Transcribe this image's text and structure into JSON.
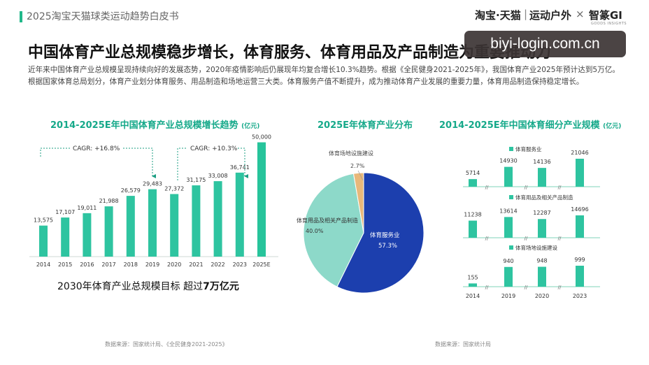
{
  "header": {
    "title": "2025淘宝天猫球类运动趋势白皮书",
    "logo_tmall": "淘宝·天猫",
    "logo_sep": "|",
    "logo_category": "运动户外",
    "logo_x": "×",
    "logo_zhimeng": "智篆GI",
    "logo_zhimeng_sub": "GOODS INSIGHTS",
    "accent_color": "#21b88a"
  },
  "main_title": "中国体育产业总规模稳步增长，体育服务、体育用品及产品制造为重要推动力",
  "watermark": "biyi-login.com.cn",
  "description": "近年来中国体育产业总规模呈现持续向好的发展态势，2020年疫情影响后仍展现年均复合增长10.3%趋势。根据《全民健身2021-2025年》，我国体育产业2025年预计达到5万亿。根据国家体育总局划分，体育产业划分体育服务、用品制造和场地运营三大类。体育服务产值不断提升，成为推动体育产业发展的重要力量，体育用品制造保持稳定增长。",
  "target": {
    "prefix": "2030年体育产业总规模目标 超过",
    "bold": "7万亿元"
  },
  "sources": {
    "left": "数据来源：国家统计局、《全民健身2021-2025》",
    "right": "数据来源：国家统计局"
  },
  "chart_data": [
    {
      "type": "bar",
      "title": "2014-2025E年中国体育产业总规模增长趋势",
      "unit": "(亿元)",
      "categories": [
        "2014",
        "2015",
        "2016",
        "2017",
        "2018",
        "2019",
        "2020",
        "2021",
        "2022",
        "2023",
        "2025E"
      ],
      "values": [
        13575,
        17107,
        19011,
        21988,
        26579,
        29483,
        27372,
        31175,
        33008,
        36741,
        50000
      ],
      "value_labels": [
        "13,575",
        "17,107",
        "19,011",
        "21,988",
        "26,579",
        "29,483",
        "27,372",
        "31,175",
        "33,008",
        "36,741",
        "50,000"
      ],
      "annotations": [
        "CAGR: +16.8%",
        "CAGR: +10.3%"
      ],
      "ylim": [
        0,
        52000
      ],
      "color": "#2ec4a0",
      "accent": "#1a9e82"
    },
    {
      "type": "pie",
      "title": "2025E年体育产业分布",
      "slices": [
        {
          "name": "体育服务业",
          "value": 57.3,
          "label": "57.3%",
          "color": "#1c3fae"
        },
        {
          "name": "体育用品及相关产品制造",
          "value": 40.0,
          "label": "40.0%",
          "color": "#8dd9c9"
        },
        {
          "name": "体育场地设施建设",
          "value": 2.7,
          "label": "2.7%",
          "color": "#e8b87a"
        }
      ]
    },
    {
      "type": "bar",
      "title": "2014-2025E年中国体育细分产业规模",
      "unit": "(亿元)",
      "categories": [
        "2014",
        "2019",
        "2020",
        "2023"
      ],
      "series": [
        {
          "name": "体育服务业",
          "values": [
            5714,
            14930,
            14136,
            21046
          ],
          "labels": [
            "5714",
            "14930",
            "14136",
            "21046"
          ]
        },
        {
          "name": "体育用品及相关产品制造",
          "values": [
            11238,
            13614,
            12287,
            14696
          ],
          "labels": [
            "11238",
            "13614",
            "12287",
            "14696"
          ]
        },
        {
          "name": "体育场地设施建设",
          "values": [
            155,
            940,
            948,
            999
          ],
          "labels": [
            "155",
            "940",
            "948",
            "999"
          ]
        }
      ],
      "color": "#2ec4a0"
    }
  ]
}
